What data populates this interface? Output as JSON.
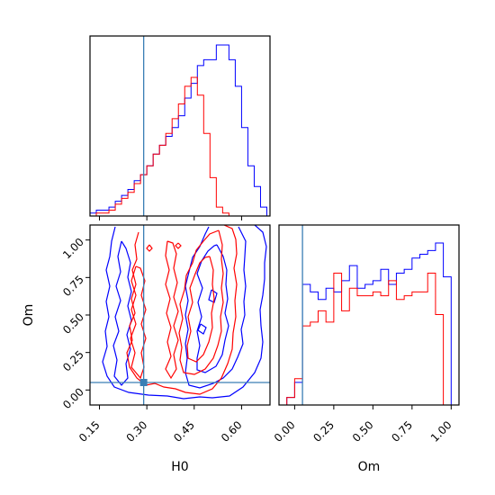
{
  "chart_data": {
    "type": "corner",
    "parameters": [
      "H0",
      "Om"
    ],
    "truth": {
      "H0": 0.29,
      "Om": 0.05,
      "color": "#3a7fb5"
    },
    "series": [
      {
        "color": "#0000ff"
      },
      {
        "color": "#ff0000"
      }
    ],
    "panels": {
      "h0_hist": {
        "xlim": [
          0.12,
          0.69
        ],
        "bins": [
          0.12,
          0.14,
          0.16,
          0.18,
          0.2,
          0.22,
          0.24,
          0.26,
          0.28,
          0.3,
          0.32,
          0.34,
          0.36,
          0.38,
          0.4,
          0.42,
          0.44,
          0.46,
          0.48,
          0.5,
          0.52,
          0.54,
          0.56,
          0.58,
          0.6,
          0.62,
          0.64,
          0.66,
          0.68
        ],
        "blue_counts": [
          1,
          2,
          2,
          3,
          5,
          7,
          9,
          12,
          14,
          17,
          21,
          24,
          27,
          30,
          34,
          40,
          45,
          51,
          53,
          53,
          58,
          58,
          53,
          44,
          30,
          17,
          10,
          3
        ],
        "red_counts": [
          0,
          1,
          1,
          2,
          4,
          6,
          8,
          11,
          14,
          17,
          21,
          24,
          28,
          33,
          38,
          44,
          47,
          41,
          28,
          13,
          3,
          1,
          0,
          0,
          0,
          0,
          0,
          0
        ]
      },
      "om_hist": {
        "xlim": [
          -0.1,
          1.05
        ],
        "bins": [
          -0.05,
          0.0,
          0.05,
          0.1,
          0.15,
          0.2,
          0.25,
          0.3,
          0.35,
          0.4,
          0.45,
          0.5,
          0.55,
          0.6,
          0.65,
          0.7,
          0.75,
          0.8,
          0.85,
          0.9,
          0.95,
          1.0
        ],
        "blue_counts": [
          2,
          6,
          32,
          30,
          28,
          31,
          30,
          33,
          37,
          31,
          32,
          33,
          36,
          32,
          35,
          36,
          39,
          40,
          41,
          43,
          34
        ],
        "red_counts": [
          2,
          7,
          21,
          22,
          25,
          22,
          35,
          25,
          31,
          29,
          29,
          30,
          29,
          33,
          28,
          29,
          30,
          30,
          35,
          24,
          0
        ]
      },
      "joint": {
        "xlim": [
          0.12,
          0.69
        ],
        "ylim": [
          -0.1,
          1.1
        ]
      }
    },
    "x_ticks_h0": [
      "0.15",
      "0.30",
      "0.45",
      "0.60"
    ],
    "y_ticks_om": [
      "0.00",
      "0.25",
      "0.50",
      "0.75",
      "1.00"
    ],
    "x_ticks_om": [
      "0.00",
      "0.25",
      "0.50",
      "0.75",
      "1.00"
    ],
    "xlabel_h0": "H0",
    "ylabel_om": "Om",
    "xlabel_om": "Om"
  }
}
